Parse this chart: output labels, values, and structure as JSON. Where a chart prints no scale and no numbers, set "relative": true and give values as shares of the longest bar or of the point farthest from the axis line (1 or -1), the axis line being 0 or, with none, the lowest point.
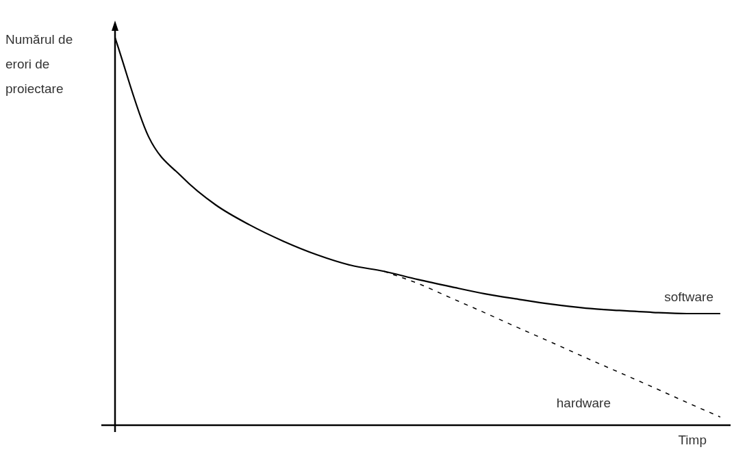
{
  "chart_data": {
    "type": "line",
    "relative": true,
    "xlabel": "Timp",
    "ylabel": "Numărul de erori de proiectare",
    "categories": [
      null,
      null,
      null,
      null,
      null,
      null,
      null,
      null,
      null,
      null,
      null,
      null,
      null,
      null,
      null,
      null,
      null,
      null,
      null
    ],
    "series": [
      {
        "name": "software",
        "color": "#000000",
        "line_style": "solid",
        "values": [
          1.0,
          0.744,
          0.64,
          0.568,
          0.517,
          0.475,
          0.44,
          0.413,
          0.397,
          0.376,
          0.357,
          0.339,
          0.325,
          0.312,
          0.302,
          0.296,
          0.291,
          0.288,
          0.288
        ]
      },
      {
        "name": "hardware",
        "color": "#000000",
        "line_style": "dashed",
        "values": [
          null,
          null,
          null,
          null,
          null,
          null,
          null,
          null,
          0.397,
          0.366,
          0.328,
          0.29,
          0.251,
          0.213,
          0.174,
          0.136,
          0.098,
          0.059,
          0.021
        ]
      }
    ],
    "marker": "none",
    "legend": false
  }
}
